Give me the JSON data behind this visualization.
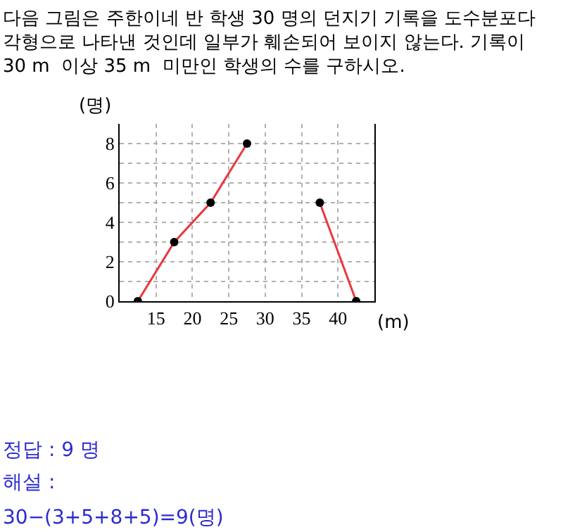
{
  "chart_data": {
    "type": "line",
    "title": "다음 그림은 주한이네 반 학생 30 명의 던지기 기록을 도수분포다\n각형으로 나타낸 것인데 일부가 훼손되어 보이지 않는다. 기록이\n30 m  이상 35 m  미만인 학생의 수를 구하시오.",
    "xlabel": "(m)",
    "ylabel": "(명)",
    "x": [
      12.5,
      17.5,
      22.5,
      27.5,
      32.5,
      37.5,
      42.5
    ],
    "series": [
      {
        "color": "#e8383d",
        "values": [
          0,
          3,
          5,
          8,
          null,
          5,
          0
        ]
      }
    ],
    "xlim": [
      10,
      45
    ],
    "xticks": [
      {
        "value": 10,
        "label": null
      },
      15,
      20,
      25,
      30,
      35,
      40,
      {
        "value": 45,
        "label": null
      }
    ],
    "ylim": [
      0,
      9
    ],
    "yticks": [
      0,
      {
        "value": 1,
        "label": null
      },
      2,
      {
        "value": 3,
        "label": null
      },
      4,
      {
        "value": 5,
        "label": null
      },
      6,
      {
        "value": 7,
        "label": null
      },
      8
    ],
    "grid": true,
    "marker": "circle",
    "line_style": "solid",
    "annotations": [
      "정답 : 9 명",
      "해설 :",
      "30−(3+5+8+5)=9(명)"
    ]
  }
}
